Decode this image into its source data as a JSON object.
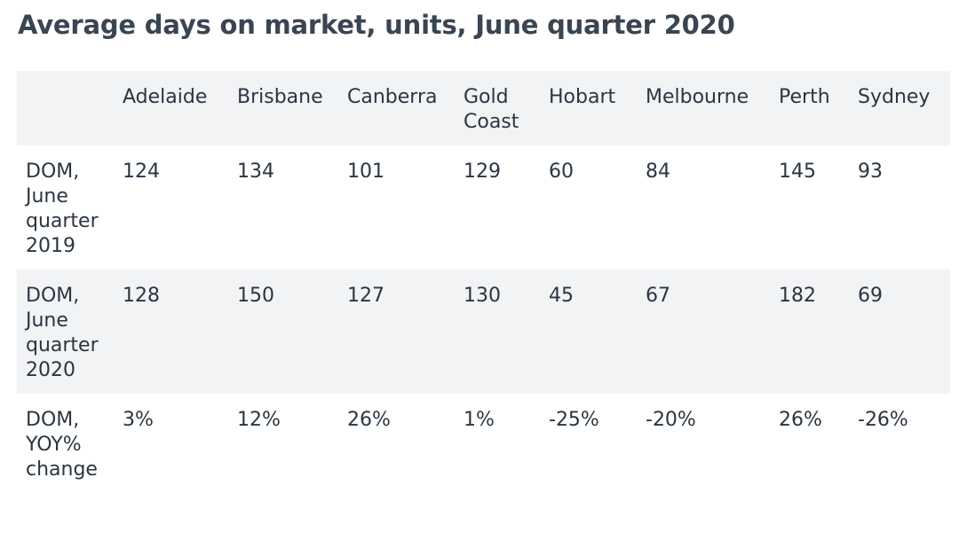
{
  "chart_data": {
    "type": "table",
    "title": "Average days on market, units, June quarter 2020",
    "columns": [
      "",
      "Adelaide",
      "Brisbane",
      "Canberra",
      "Gold Coast",
      "Hobart",
      "Melbourne",
      "Perth",
      "Sydney"
    ],
    "rows": [
      {
        "label": "DOM, June quarter 2019",
        "values": [
          "124",
          "134",
          "101",
          "129",
          "60",
          "84",
          "145",
          "93"
        ]
      },
      {
        "label": "DOM, June quarter 2020",
        "values": [
          "128",
          "150",
          "127",
          "130",
          "45",
          "67",
          "182",
          "69"
        ]
      },
      {
        "label": "DOM, YOY% change",
        "values": [
          "3%",
          "12%",
          "26%",
          "1%",
          "-25%",
          "-20%",
          "26%",
          "-26%"
        ]
      }
    ]
  },
  "colors": {
    "shaded_row": "#f2f3f5",
    "text": "#2b3541",
    "title": "#3a4552"
  }
}
